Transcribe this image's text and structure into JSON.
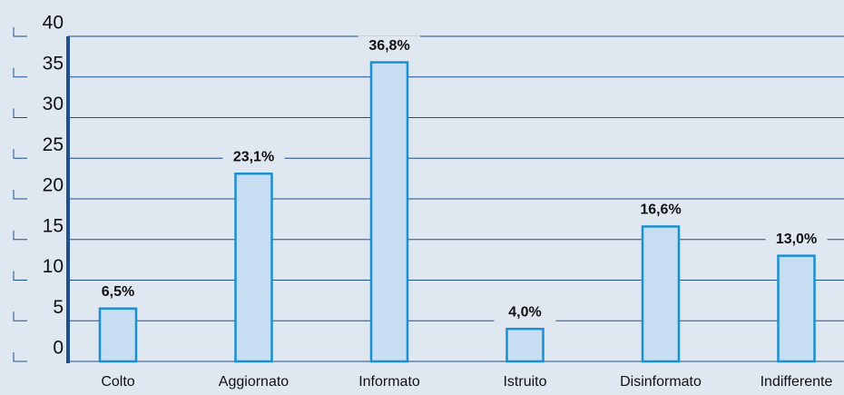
{
  "chart_data": {
    "type": "bar",
    "categories": [
      "Colto",
      "Aggiornato",
      "Informato",
      "Istruito",
      "Disinformato",
      "Indifferente"
    ],
    "values": [
      6.5,
      23.1,
      36.8,
      4.0,
      16.6,
      13.0
    ],
    "value_labels": [
      "6,5%",
      "23,1%",
      "36,8%",
      "4,0%",
      "16,6%",
      "13,0%"
    ],
    "color": "#c7ddf1",
    "edge_color": "#1a8fd2",
    "ylim": [
      0,
      40
    ],
    "yticks": [
      0,
      5,
      10,
      15,
      20,
      25,
      30,
      35,
      40
    ],
    "grid": true
  }
}
